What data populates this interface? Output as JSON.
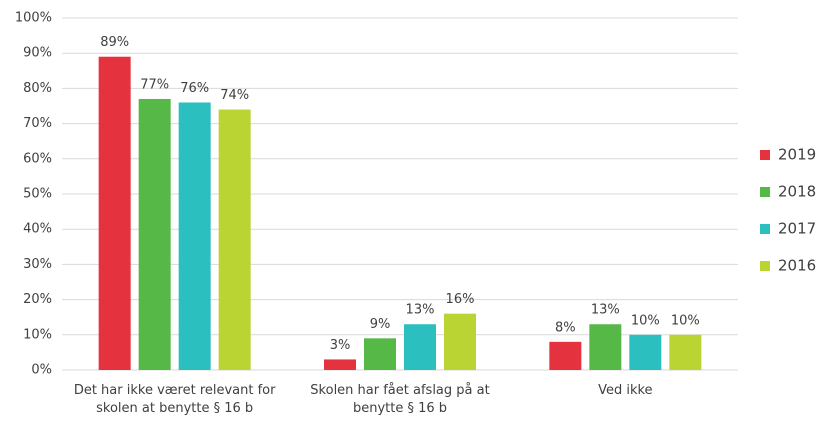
{
  "chart_data": {
    "type": "bar",
    "categories": [
      "Det har ikke været relevant for skolen at benytte § 16 b",
      "Skolen har fået afslag på at benytte § 16 b",
      "Ved ikke"
    ],
    "series": [
      {
        "name": "2019",
        "color": "#e5323f",
        "values": [
          89,
          3,
          8
        ],
        "value_labels": [
          "89%",
          "3%",
          "8%"
        ]
      },
      {
        "name": "2018",
        "color": "#56b947",
        "values": [
          77,
          9,
          13
        ],
        "value_labels": [
          "77%",
          "9%",
          "13%"
        ]
      },
      {
        "name": "2017",
        "color": "#2cbfbf",
        "values": [
          76,
          13,
          10
        ],
        "value_labels": [
          "76%",
          "13%",
          "10%"
        ]
      },
      {
        "name": "2016",
        "color": "#b9d433",
        "values": [
          74,
          16,
          10
        ],
        "value_labels": [
          "74%",
          "16%",
          "10%"
        ]
      }
    ],
    "ylim": [
      0,
      100
    ],
    "yticks": [
      {
        "value": 0,
        "label": "0%"
      },
      {
        "value": 10,
        "label": "10%"
      },
      {
        "value": 20,
        "label": "20%"
      },
      {
        "value": 30,
        "label": "30%"
      },
      {
        "value": 40,
        "label": "40%"
      },
      {
        "value": 50,
        "label": "50%"
      },
      {
        "value": 60,
        "label": "60%"
      },
      {
        "value": 70,
        "label": "70%"
      },
      {
        "value": 80,
        "label": "80%"
      },
      {
        "value": 90,
        "label": "90%"
      },
      {
        "value": 100,
        "label": "100%"
      }
    ],
    "grid": true,
    "legend": "right"
  }
}
